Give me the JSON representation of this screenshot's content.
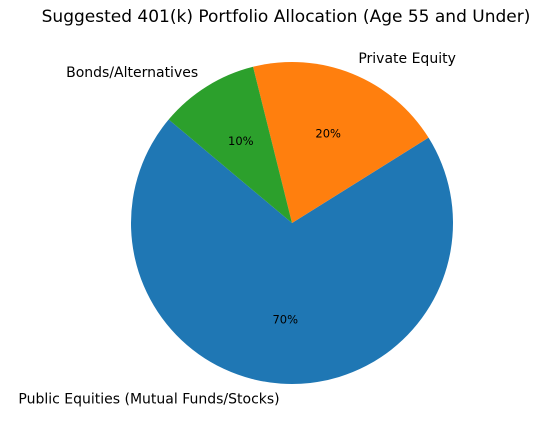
{
  "chart_data": {
    "type": "pie",
    "title": "Suggested 401(k) Portfolio Allocation (Age 55 and Under)",
    "slices": [
      {
        "label": "Public Equities (Mutual Funds/Stocks)",
        "value": 70,
        "pct_label": "70%",
        "color": "#1f77b4"
      },
      {
        "label": "Private Equity",
        "value": 20,
        "pct_label": "20%",
        "color": "#ff7f0e"
      },
      {
        "label": "Bonds/Alternatives",
        "value": 10,
        "pct_label": "10%",
        "color": "#2ca02c"
      }
    ],
    "start_angle_deg": 140,
    "direction": "counterclockwise",
    "legend": "none"
  }
}
